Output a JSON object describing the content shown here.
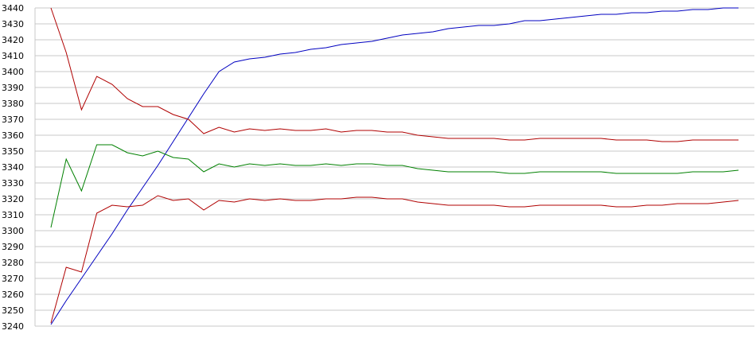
{
  "chart_data": {
    "type": "line",
    "title": "",
    "xlabel": "",
    "ylabel": "",
    "ylim": [
      3240,
      3440
    ],
    "yticks": [
      3240,
      3250,
      3260,
      3270,
      3280,
      3290,
      3300,
      3310,
      3320,
      3330,
      3340,
      3350,
      3360,
      3370,
      3380,
      3390,
      3400,
      3410,
      3420,
      3430,
      3440
    ],
    "grid": true,
    "legend": "none",
    "x": [
      0,
      1,
      2,
      3,
      4,
      5,
      6,
      7,
      8,
      9,
      10,
      11,
      12,
      13,
      14,
      15,
      16,
      17,
      18,
      19,
      20,
      21,
      22,
      23,
      24,
      25,
      26,
      27,
      28,
      29,
      30,
      31,
      32,
      33,
      34,
      35,
      36,
      37,
      38,
      39,
      40,
      41,
      42,
      43,
      44,
      45
    ],
    "series": [
      {
        "color": "#0000c0",
        "values": [
          3241,
          3256,
          3270,
          3284,
          3298,
          3313,
          3327,
          3341,
          3356,
          3371,
          3386,
          3400,
          3406,
          3408,
          3409,
          3411,
          3412,
          3414,
          3415,
          3417,
          3418,
          3419,
          3421,
          3423,
          3424,
          3425,
          3427,
          3428,
          3429,
          3429,
          3430,
          3432,
          3432,
          3433,
          3434,
          3435,
          3436,
          3436,
          3437,
          3437,
          3438,
          3438,
          3439,
          3439,
          3440,
          3440
        ]
      },
      {
        "color": "#b00000",
        "values": [
          3440,
          3412,
          3376,
          3397,
          3392,
          3383,
          3378,
          3378,
          3373,
          3370,
          3361,
          3365,
          3362,
          3364,
          3363,
          3364,
          3363,
          3363,
          3364,
          3362,
          3363,
          3363,
          3362,
          3362,
          3360,
          3359,
          3358,
          3358,
          3358,
          3358,
          3357,
          3357,
          3358,
          3358,
          3358,
          3358,
          3358,
          3357,
          3357,
          3357,
          3356,
          3356,
          3357,
          3357,
          3357,
          3357
        ]
      },
      {
        "color": "#008000",
        "values": [
          3302,
          3345,
          3325,
          3354,
          3354,
          3349,
          3347,
          3350,
          3346,
          3345,
          3337,
          3342,
          3340,
          3342,
          3341,
          3342,
          3341,
          3341,
          3342,
          3341,
          3342,
          3342,
          3341,
          3341,
          3339,
          3338,
          3337,
          3337,
          3337,
          3337,
          3336,
          3336,
          3337,
          3337,
          3337,
          3337,
          3337,
          3336,
          3336,
          3336,
          3336,
          3336,
          3337,
          3337,
          3337,
          3338
        ]
      },
      {
        "color": "#b00000",
        "values": [
          3242,
          3277,
          3274,
          3311,
          3316,
          3315,
          3316,
          3322,
          3319,
          3320,
          3313,
          3319,
          3318,
          3320,
          3319,
          3320,
          3319,
          3319,
          3320,
          3320,
          3321,
          3321,
          3320,
          3320,
          3318,
          3317,
          3316,
          3316,
          3316,
          3316,
          3315,
          3315,
          3316,
          3316,
          3316,
          3316,
          3316,
          3315,
          3315,
          3316,
          3316,
          3317,
          3317,
          3317,
          3318,
          3319
        ]
      }
    ]
  }
}
